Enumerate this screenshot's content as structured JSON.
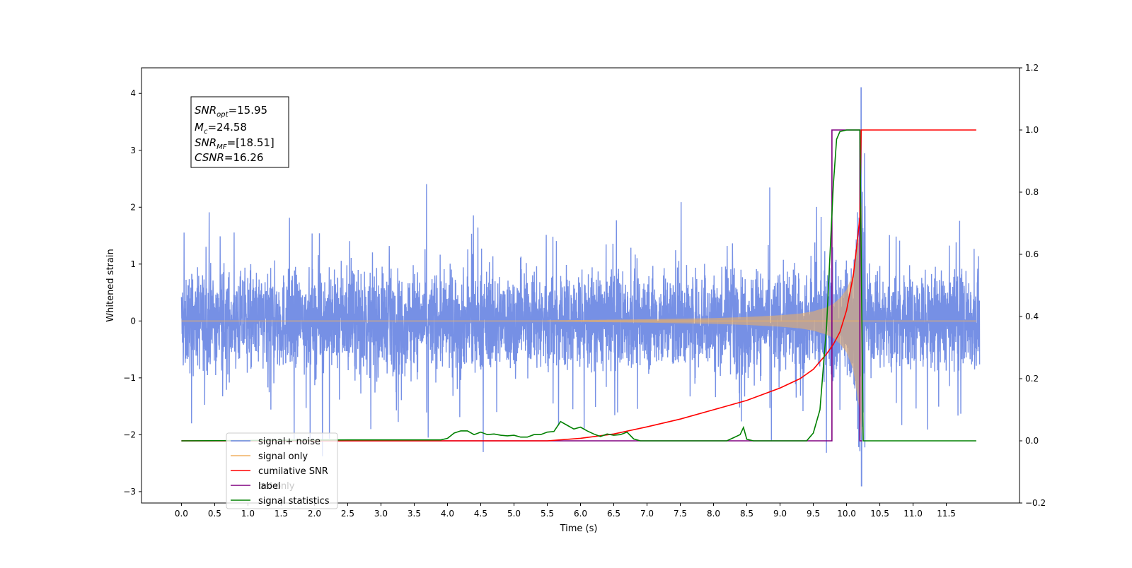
{
  "chart_data": {
    "type": "line",
    "xlabel": "Time (s)",
    "ylabel": "Whitened strain",
    "xlim": [
      -0.6,
      12.6
    ],
    "ylim": [
      -3.2,
      4.45
    ],
    "y2lim": [
      -0.2,
      1.2
    ],
    "xticks": [
      "0.0",
      "0.5",
      "1.0",
      "1.5",
      "2.0",
      "2.5",
      "3.0",
      "3.5",
      "4.0",
      "4.5",
      "5.0",
      "5.5",
      "6.0",
      "6.5",
      "7.0",
      "7.5",
      "8.0",
      "8.5",
      "9.0",
      "9.5",
      "10.0",
      "10.5",
      "11.0",
      "11.5"
    ],
    "yticks": [
      "4",
      "3",
      "2",
      "1",
      "0",
      "−1",
      "−2",
      "−3"
    ],
    "y2ticks": [
      "1.2",
      "1.0",
      "0.8",
      "0.6",
      "0.4",
      "0.2",
      "0.0",
      "−0.2"
    ],
    "textbox": {
      "snr_opt_sym": "SNR",
      "snr_opt_sub": "opt",
      "snr_opt_val": "=15.95",
      "mc_sym": "M",
      "mc_sub": "c",
      "mc_val": "=24.58",
      "snr_mf_sym": "SNR",
      "snr_mf_sub": "MF",
      "snr_mf_val": "=[18.51]",
      "csnr_sym": "CSNR",
      "csnr_val": "=16.26"
    },
    "legend": {
      "placement": "lower-left",
      "entries": [
        "signal+ noise",
        "signal only",
        "cumilative SNR",
        "label",
        "signal statistics"
      ],
      "overlapped_text": "bel only"
    },
    "colors": {
      "noise": "#6a87e3",
      "signal": "#f0b060",
      "csnr": "#ff0000",
      "label": "#800080",
      "stats": "#008000"
    },
    "series": [
      {
        "name": "signal+ noise",
        "axis": "left",
        "x_range": [
          0.0,
          12.0
        ],
        "typical_range": [
          -1.3,
          1.7
        ],
        "peak_max": 4.1,
        "peak_min": -2.9
      },
      {
        "name": "signal only",
        "axis": "left",
        "x": [
          0,
          5.5,
          7.0,
          8.0,
          8.5,
          9.0,
          9.3,
          9.5,
          9.7,
          9.8,
          9.9,
          10.0,
          10.1,
          10.2,
          10.23,
          12.0
        ],
        "amplitude": [
          0,
          0.01,
          0.03,
          0.05,
          0.07,
          0.1,
          0.13,
          0.17,
          0.24,
          0.3,
          0.4,
          0.55,
          0.85,
          1.6,
          2.1,
          0
        ],
        "merger_time": 10.23
      },
      {
        "name": "cumilative SNR",
        "axis": "right",
        "x": [
          5.5,
          6.0,
          6.5,
          7.0,
          7.5,
          8.0,
          8.5,
          9.0,
          9.3,
          9.5,
          9.7,
          9.8,
          9.9,
          10.0,
          10.1,
          10.15,
          10.2,
          10.22,
          10.23,
          11.95
        ],
        "y": [
          0.0,
          0.008,
          0.022,
          0.045,
          0.07,
          0.1,
          0.13,
          0.17,
          0.2,
          0.23,
          0.28,
          0.31,
          0.35,
          0.42,
          0.53,
          0.62,
          0.72,
          1.0,
          1.0,
          1.0
        ]
      },
      {
        "name": "label",
        "axis": "right",
        "x": [
          0.0,
          9.78,
          9.78,
          10.2,
          10.2,
          10.23
        ],
        "y": [
          0.0,
          0.0,
          1.0,
          1.0,
          0.0,
          0.0
        ]
      },
      {
        "name": "signal statistics",
        "axis": "right",
        "x": [
          0.0,
          2.5,
          3.5,
          3.9,
          4.0,
          4.1,
          4.2,
          4.3,
          4.4,
          4.5,
          4.6,
          4.7,
          4.8,
          4.9,
          5.0,
          5.1,
          5.2,
          5.3,
          5.4,
          5.5,
          5.6,
          5.7,
          5.8,
          5.9,
          6.0,
          6.1,
          6.2,
          6.3,
          6.4,
          6.5,
          6.6,
          6.7,
          6.8,
          6.9,
          7.0,
          8.2,
          8.3,
          8.4,
          8.45,
          8.5,
          8.6,
          9.4,
          9.5,
          9.6,
          9.7,
          9.8,
          9.85,
          9.9,
          10.0,
          10.2,
          10.25,
          11.95
        ],
        "y": [
          0.0,
          0.003,
          0.003,
          0.003,
          0.008,
          0.025,
          0.032,
          0.032,
          0.02,
          0.028,
          0.02,
          0.022,
          0.018,
          0.016,
          0.018,
          0.012,
          0.012,
          0.02,
          0.02,
          0.028,
          0.03,
          0.062,
          0.05,
          0.038,
          0.044,
          0.032,
          0.022,
          0.014,
          0.022,
          0.018,
          0.02,
          0.028,
          0.006,
          0.0,
          0.0,
          0.0,
          0.01,
          0.02,
          0.043,
          0.005,
          0.0,
          0.0,
          0.025,
          0.1,
          0.37,
          0.82,
          0.97,
          0.995,
          1.0,
          1.0,
          0.0,
          0.0
        ]
      }
    ]
  }
}
